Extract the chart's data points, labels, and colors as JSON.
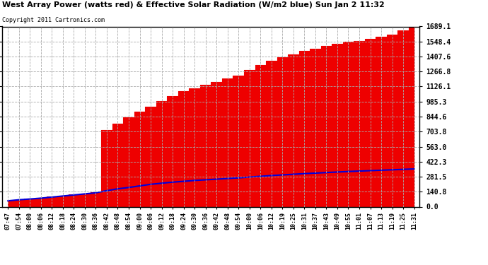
{
  "title": "West Array Power (watts red) & Effective Solar Radiation (W/m2 blue) Sun Jan 2 11:32",
  "copyright": "Copyright 2011 Cartronics.com",
  "background_color": "#ffffff",
  "plot_bg_color": "#ffffff",
  "grid_color": "#aaaaaa",
  "red_color": "#ee0000",
  "blue_color": "#0000dd",
  "yticks": [
    0.0,
    140.8,
    281.5,
    422.3,
    563.0,
    703.8,
    844.6,
    985.3,
    1126.1,
    1266.8,
    1407.6,
    1548.4,
    1689.1
  ],
  "ymax": 1689.1,
  "ymin": 0.0,
  "x_labels": [
    "07:47",
    "07:54",
    "08:00",
    "08:06",
    "08:12",
    "08:18",
    "08:24",
    "08:30",
    "08:36",
    "08:42",
    "08:48",
    "08:54",
    "09:00",
    "09:06",
    "09:12",
    "09:18",
    "09:24",
    "09:30",
    "09:36",
    "09:42",
    "09:48",
    "09:54",
    "10:00",
    "10:06",
    "10:12",
    "10:19",
    "10:25",
    "10:31",
    "10:37",
    "10:43",
    "10:49",
    "10:55",
    "11:01",
    "11:07",
    "11:13",
    "11:19",
    "11:25",
    "11:31"
  ],
  "power_values": [
    55,
    65,
    75,
    85,
    95,
    105,
    115,
    125,
    135,
    720,
    780,
    840,
    890,
    940,
    990,
    1035,
    1080,
    1110,
    1140,
    1170,
    1200,
    1230,
    1280,
    1330,
    1370,
    1400,
    1430,
    1460,
    1480,
    1505,
    1530,
    1545,
    1555,
    1570,
    1590,
    1610,
    1650,
    1689
  ],
  "radiation_values": [
    55,
    65,
    72,
    80,
    90,
    100,
    110,
    120,
    130,
    150,
    168,
    180,
    195,
    210,
    220,
    230,
    238,
    246,
    252,
    258,
    264,
    270,
    278,
    285,
    292,
    298,
    304,
    310,
    315,
    320,
    325,
    330,
    334,
    338,
    342,
    346,
    350,
    354
  ]
}
